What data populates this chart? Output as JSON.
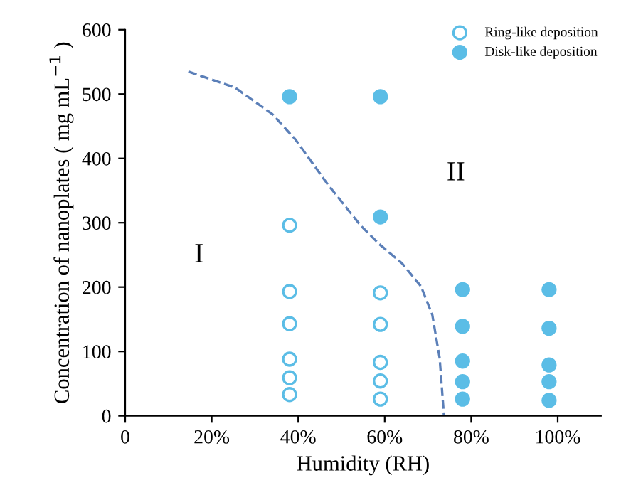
{
  "chart_data": {
    "type": "scatter",
    "xlabel": "Humidity (RH)",
    "ylabel": "Concentration of nanoplates ( mg mL$^{−1}$ )",
    "xlim": [
      0,
      110
    ],
    "ylim": [
      0,
      600
    ],
    "xticks": [
      0,
      {
        "value": 20,
        "label": "20%"
      },
      {
        "value": 40,
        "label": "40%"
      },
      {
        "value": 60,
        "label": "60%"
      },
      {
        "value": 80,
        "label": "80%"
      },
      {
        "value": 100,
        "label": "100%"
      }
    ],
    "yticks": [
      0,
      100,
      200,
      300,
      400,
      500,
      600
    ],
    "grid": false,
    "legend": "top right",
    "marker": "circle",
    "series": [
      {
        "name": "Ring-like deposition",
        "color": "#5bbde6",
        "x": [
          38,
          38,
          38,
          38,
          38,
          38,
          59,
          59,
          59,
          59,
          59
        ],
        "values": [
          296,
          193,
          143,
          88,
          59,
          33,
          191,
          142,
          83,
          54,
          26
        ]
      },
      {
        "name": "Disk-like deposition",
        "color": "#5bbde6",
        "x": [
          38,
          59,
          59,
          78,
          78,
          78,
          78,
          78,
          98,
          98,
          98,
          98,
          98
        ],
        "values": [
          496,
          496,
          309,
          196,
          139,
          85,
          53,
          26,
          196,
          136,
          79,
          53,
          24
        ]
      },
      {
        "type": "line",
        "marker": "none",
        "line_style": "dashed",
        "color": "#5b7fb8",
        "x": [
          14.6,
          25.4,
          34,
          39.4,
          46.9,
          54.4,
          58.7,
          64,
          68.4,
          71,
          72.7,
          73.7
        ],
        "values": [
          535,
          510,
          469,
          429,
          359,
          296,
          267,
          237,
          201,
          157,
          90,
          0
        ]
      }
    ],
    "annotations": [
      "I",
      "II"
    ]
  }
}
